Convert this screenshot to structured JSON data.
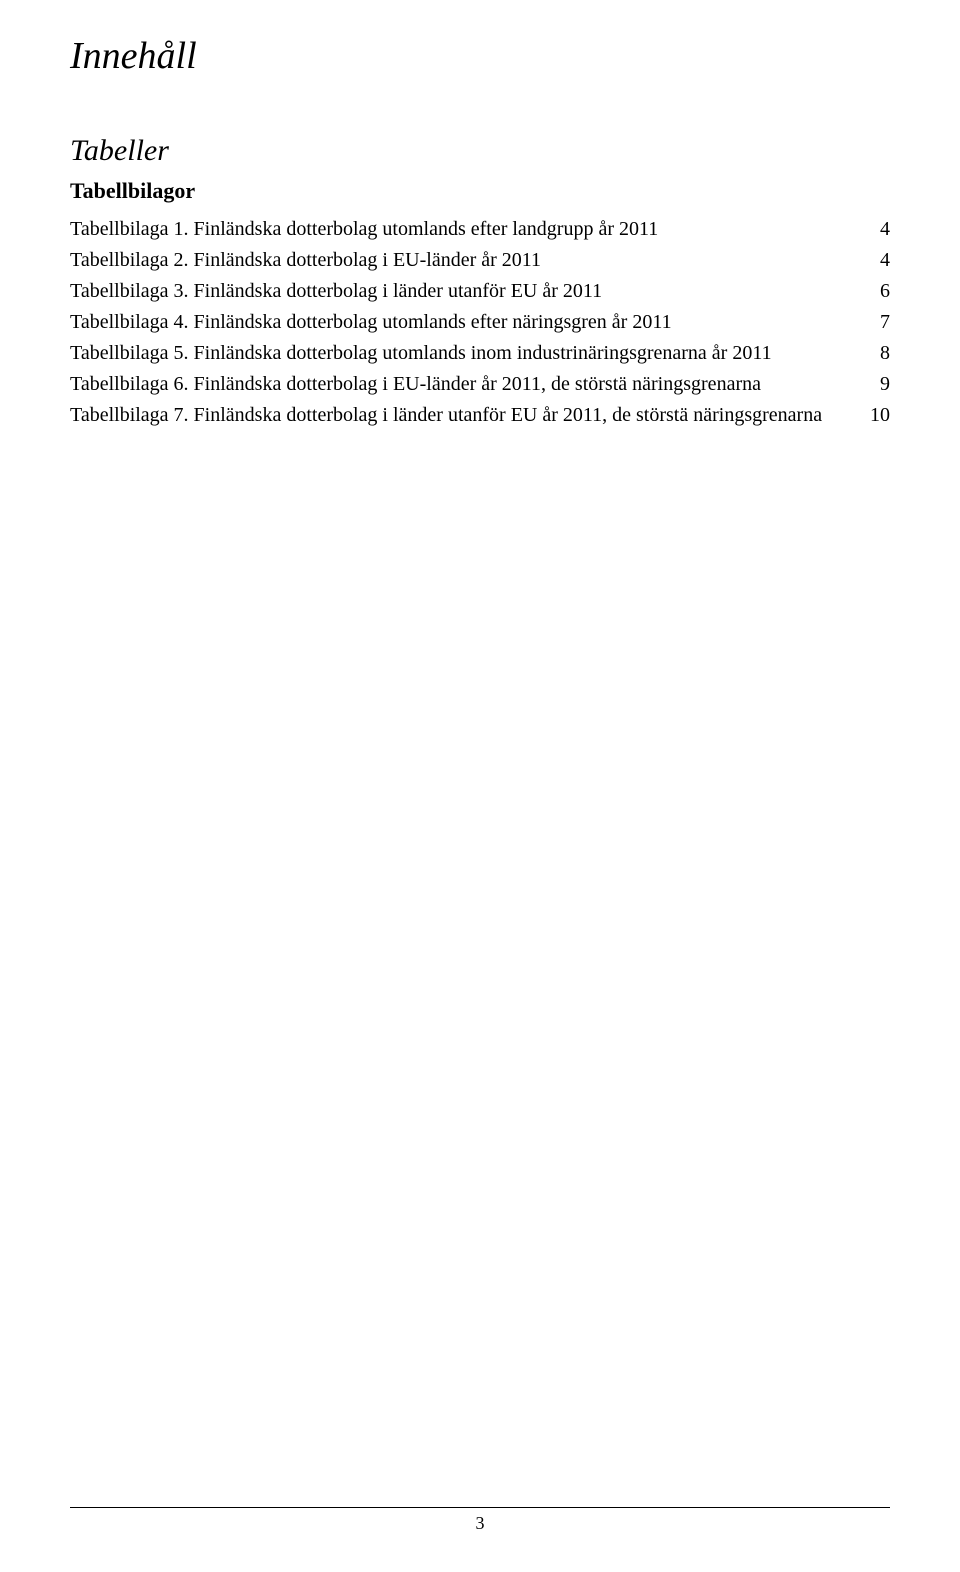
{
  "doc_title": "Innehåll",
  "section_title": "Tabeller",
  "sub_title": "Tabellbilagor",
  "entries": [
    {
      "label": "Tabellbilaga 1. Finländska dotterbolag utomlands efter landgrupp år 2011",
      "page": "4"
    },
    {
      "label": "Tabellbilaga 2. Finländska dotterbolag i EU-länder år 2011",
      "page": "4"
    },
    {
      "label": "Tabellbilaga 3. Finländska dotterbolag i länder utanför EU år 2011",
      "page": "6"
    },
    {
      "label": "Tabellbilaga 4. Finländska dotterbolag utomlands efter näringsgren år 2011",
      "page": "7"
    },
    {
      "label": "Tabellbilaga 5. Finländska dotterbolag utomlands inom industrinäringsgrenarna år 2011",
      "page": "8"
    },
    {
      "label": "Tabellbilaga 6. Finländska dotterbolag i EU-länder år 2011, de störstä näringsgrenarna",
      "page": "9"
    },
    {
      "label": "Tabellbilaga 7. Finländska dotterbolag i länder utanför EU år 2011, de störstä näringsgrenarna",
      "page": "10"
    }
  ],
  "page_number": "3"
}
